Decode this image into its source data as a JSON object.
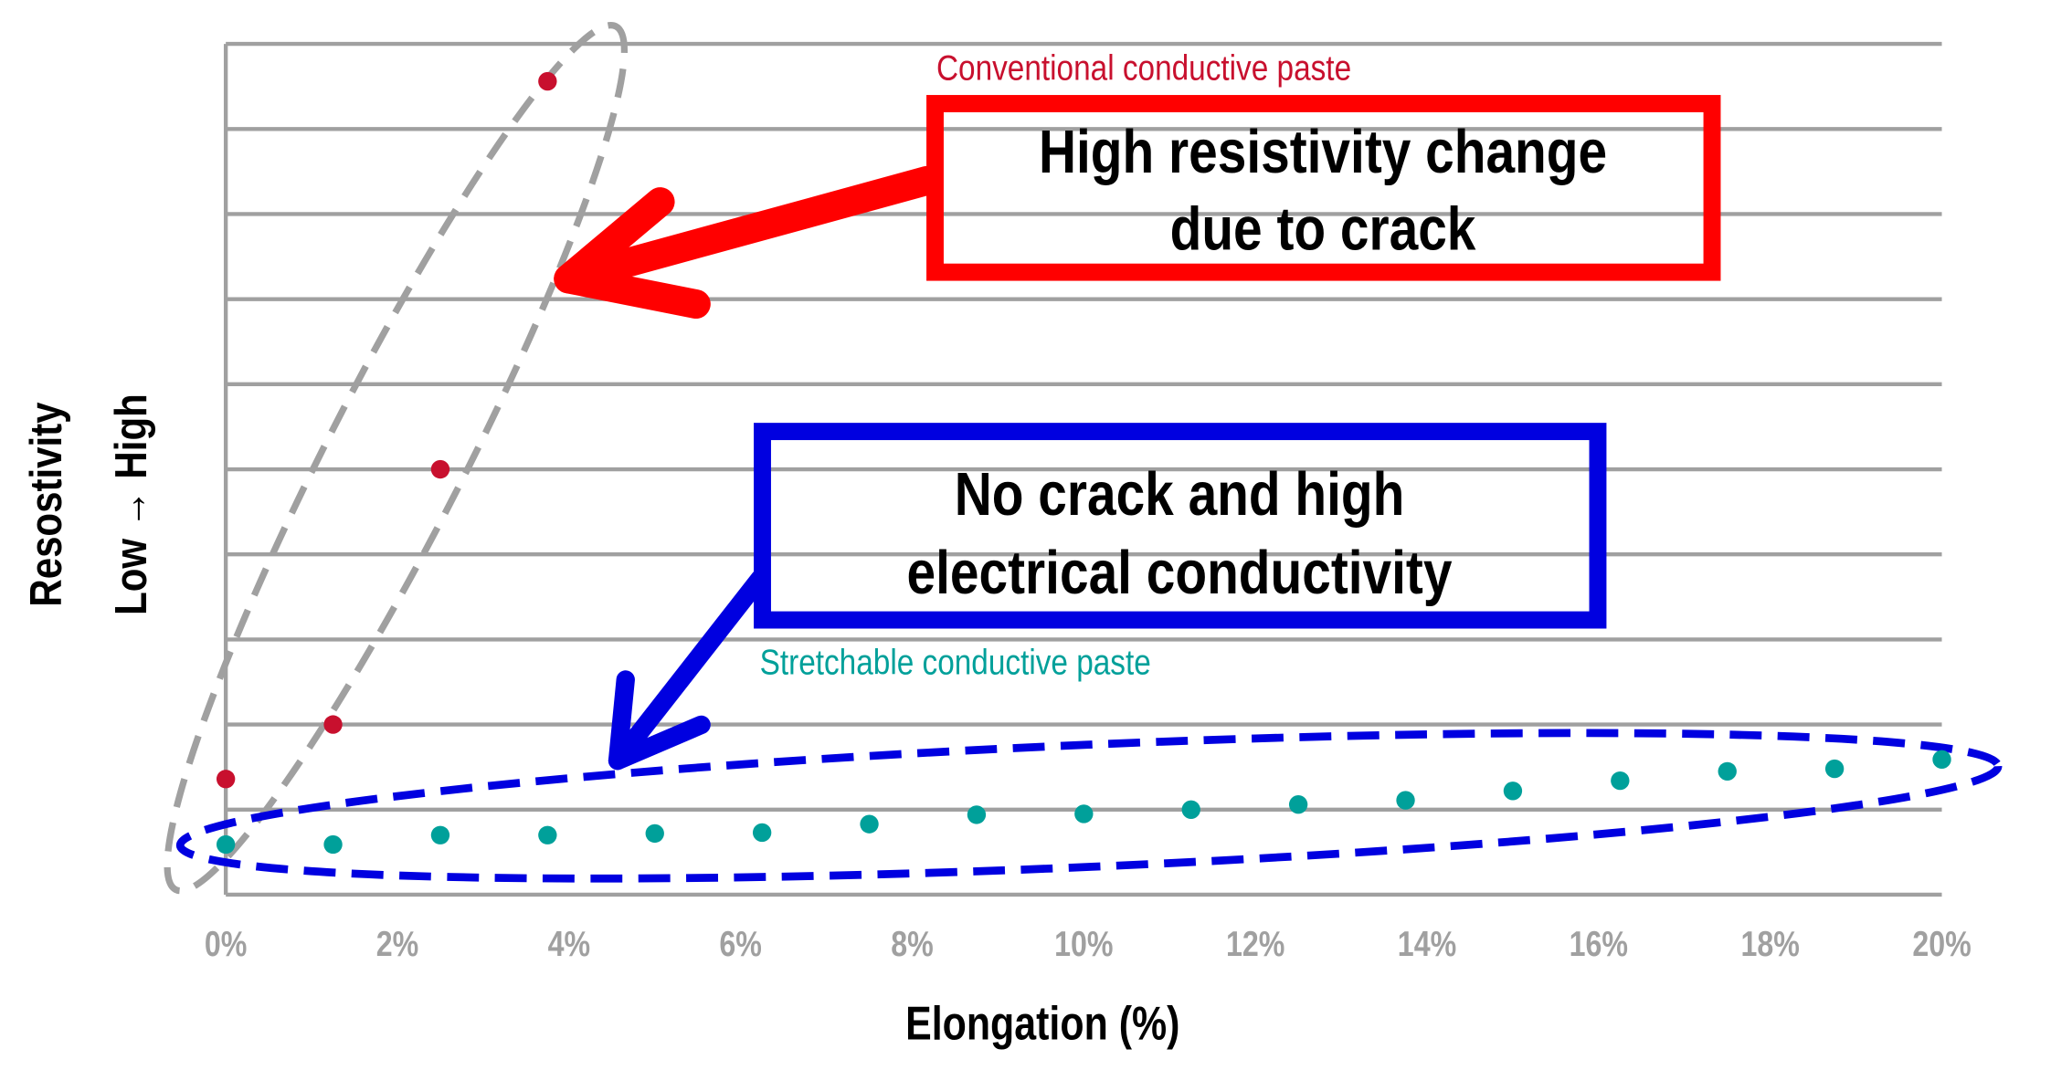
{
  "chart_data": {
    "type": "scatter",
    "title": "",
    "xlabel": "Elongation (%)",
    "ylabel": "Resostivity",
    "ylabel_sub": "Low → High",
    "xlim": [
      0,
      20
    ],
    "ylim": [
      0,
      10
    ],
    "x_ticks": [
      0,
      2,
      4,
      6,
      8,
      10,
      12,
      14,
      16,
      18,
      20
    ],
    "x_tick_labels": [
      "0%",
      "2%",
      "4%",
      "6%",
      "8%",
      "10%",
      "12%",
      "14%",
      "16%",
      "18%",
      "20%"
    ],
    "y_gridlines": [
      0,
      1,
      2,
      3,
      4,
      5,
      6,
      7,
      8,
      9,
      10
    ],
    "grid": true,
    "series": [
      {
        "name": "Conventional conductive paste",
        "color": "#c8102e",
        "x": [
          0,
          1.25,
          2.5,
          3.75
        ],
        "y": [
          1.36,
          2.0,
          5.0,
          9.56
        ]
      },
      {
        "name": "Stretchable conductive paste",
        "color": "#00a09a",
        "x": [
          0,
          1.25,
          2.5,
          3.75,
          5,
          6.25,
          7.5,
          8.75,
          10,
          11.25,
          12.5,
          13.75,
          15,
          16.25,
          17.5,
          18.75,
          20
        ],
        "y": [
          0.59,
          0.59,
          0.7,
          0.7,
          0.72,
          0.73,
          0.83,
          0.94,
          0.95,
          1.0,
          1.06,
          1.11,
          1.22,
          1.34,
          1.45,
          1.48,
          1.59
        ]
      }
    ],
    "annotations": {
      "conventional_callout": [
        "High resistivity change",
        "due to crack"
      ],
      "stretchable_callout": [
        "No crack and high",
        "electrical conductivity"
      ],
      "conventional_color": "#ff0000",
      "stretchable_color": "#0000e0"
    }
  }
}
